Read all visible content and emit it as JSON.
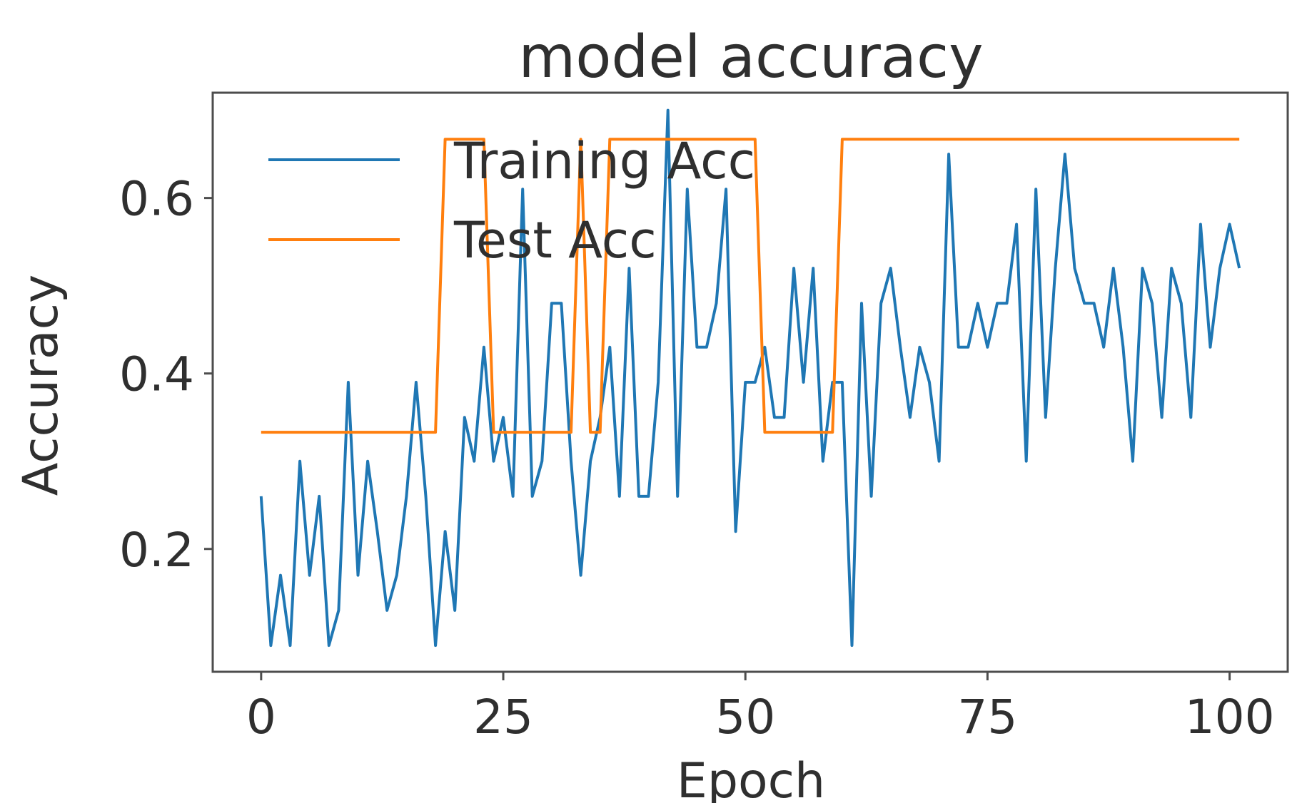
{
  "chart_data": {
    "type": "line",
    "title": "model accuracy",
    "xlabel": "Epoch",
    "ylabel": "Accuracy",
    "xlim": [
      -5,
      106
    ],
    "ylim": [
      0.06,
      0.72
    ],
    "xticks": [
      0,
      25,
      50,
      75,
      100
    ],
    "xtick_labels": [
      "0",
      "25",
      "50",
      "75",
      "100"
    ],
    "yticks": [
      0.2,
      0.4,
      0.6
    ],
    "ytick_labels": [
      "0.2",
      "0.4",
      "0.6"
    ],
    "grid": false,
    "legend_position": "top-left",
    "x": [
      0,
      1,
      2,
      3,
      4,
      5,
      6,
      7,
      8,
      9,
      10,
      11,
      12,
      13,
      14,
      15,
      16,
      17,
      18,
      19,
      20,
      21,
      22,
      23,
      24,
      25,
      26,
      27,
      28,
      29,
      30,
      31,
      32,
      33,
      34,
      35,
      36,
      37,
      38,
      39,
      40,
      41,
      42,
      43,
      44,
      45,
      46,
      47,
      48,
      49,
      50,
      51,
      52,
      53,
      54,
      55,
      56,
      57,
      58,
      59,
      60,
      61,
      62,
      63,
      64,
      65,
      66,
      67,
      68,
      69,
      70,
      71,
      72,
      73,
      74,
      75,
      76,
      77,
      78,
      79,
      80,
      81,
      82,
      83,
      84,
      85,
      86,
      87,
      88,
      89,
      90,
      91,
      92,
      93,
      94,
      95,
      96,
      97,
      98,
      99,
      100,
      101
    ],
    "series": [
      {
        "name": "Training Acc",
        "color": "#1f77b4",
        "values": [
          0.26,
          0.09,
          0.17,
          0.09,
          0.3,
          0.17,
          0.26,
          0.09,
          0.13,
          0.39,
          0.17,
          0.3,
          0.22,
          0.13,
          0.17,
          0.26,
          0.39,
          0.26,
          0.09,
          0.22,
          0.13,
          0.35,
          0.3,
          0.43,
          0.3,
          0.35,
          0.26,
          0.61,
          0.26,
          0.3,
          0.48,
          0.48,
          0.3,
          0.17,
          0.3,
          0.35,
          0.43,
          0.26,
          0.52,
          0.26,
          0.26,
          0.39,
          0.7,
          0.26,
          0.61,
          0.43,
          0.43,
          0.48,
          0.61,
          0.22,
          0.39,
          0.39,
          0.43,
          0.35,
          0.35,
          0.52,
          0.39,
          0.52,
          0.3,
          0.39,
          0.39,
          0.09,
          0.48,
          0.26,
          0.48,
          0.52,
          0.43,
          0.35,
          0.43,
          0.39,
          0.3,
          0.65,
          0.43,
          0.43,
          0.48,
          0.43,
          0.48,
          0.48,
          0.57,
          0.3,
          0.61,
          0.35,
          0.52,
          0.65,
          0.52,
          0.48,
          0.48,
          0.43,
          0.52,
          0.43,
          0.3,
          0.52,
          0.48,
          0.35,
          0.52,
          0.48,
          0.35,
          0.57,
          0.43,
          0.52,
          0.57,
          0.52
        ]
      },
      {
        "name": "Test Acc",
        "color": "#ff7f0e",
        "values": [
          0.333,
          0.333,
          0.333,
          0.333,
          0.333,
          0.333,
          0.333,
          0.333,
          0.333,
          0.333,
          0.333,
          0.333,
          0.333,
          0.333,
          0.333,
          0.333,
          0.333,
          0.333,
          0.333,
          0.667,
          0.667,
          0.667,
          0.667,
          0.667,
          0.333,
          0.333,
          0.333,
          0.333,
          0.333,
          0.333,
          0.333,
          0.333,
          0.333,
          0.667,
          0.333,
          0.333,
          0.667,
          0.667,
          0.667,
          0.667,
          0.667,
          0.667,
          0.667,
          0.667,
          0.667,
          0.667,
          0.667,
          0.667,
          0.667,
          0.667,
          0.667,
          0.667,
          0.333,
          0.333,
          0.333,
          0.333,
          0.333,
          0.333,
          0.333,
          0.333,
          0.667,
          0.667,
          0.667,
          0.667,
          0.667,
          0.667,
          0.667,
          0.667,
          0.667,
          0.667,
          0.667,
          0.667,
          0.667,
          0.667,
          0.667,
          0.667,
          0.667,
          0.667,
          0.667,
          0.667,
          0.667,
          0.667,
          0.667,
          0.667,
          0.667,
          0.667,
          0.667,
          0.667,
          0.667,
          0.667,
          0.667,
          0.667,
          0.667,
          0.667,
          0.667,
          0.667,
          0.667,
          0.667,
          0.667,
          0.667,
          0.667,
          0.667
        ]
      }
    ]
  }
}
